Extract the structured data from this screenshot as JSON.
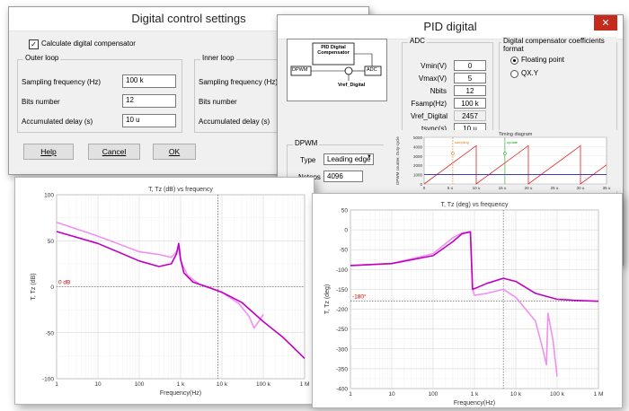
{
  "digital_control": {
    "title": "Digital control settings",
    "calc_checkbox_label": "Calculate digital compensator",
    "outer_loop": {
      "label": "Outer loop",
      "sampling_label": "Sampling frequency (Hz)",
      "sampling_value": "100 k",
      "bits_label": "Bits number",
      "bits_value": "12",
      "delay_label": "Accumulated delay (s)",
      "delay_value": "10 u"
    },
    "inner_loop": {
      "label": "Inner loop",
      "sampling_label": "Sampling frequency (Hz)",
      "bits_label": "Bits number",
      "delay_label": "Accumulated delay (s)"
    },
    "help_label": "Help",
    "cancel_label": "Cancel",
    "ok_label": "OK"
  },
  "pid_digital": {
    "title": "PID digital",
    "block": {
      "comp_label": "PID Digital Compensator",
      "dpwm_label": "DPWM",
      "adc_label": "ADC",
      "vref_label": "Vref_Digital"
    },
    "adc": {
      "label": "ADC",
      "rows": [
        {
          "name": "Vmin(V)",
          "value": "0"
        },
        {
          "name": "Vmax(V)",
          "value": "5"
        },
        {
          "name": "Nbits",
          "value": "12"
        },
        {
          "name": "Fsamp(Hz)",
          "value": "100 k"
        },
        {
          "name": "Vref_Digital",
          "value": "2457"
        },
        {
          "name": "tsync(s)",
          "value": "10 u"
        }
      ]
    },
    "coeff": {
      "label": "Digital compensator coefficients format",
      "opt1": "Floating point",
      "opt2": "QX.Y"
    },
    "dpwm": {
      "label": "DPWM",
      "type_label": "Type",
      "type_value": "Leading edge",
      "nsteps_label": "Nsteps",
      "nsteps_value": "4096"
    },
    "timing": {
      "title": "Timing diagram",
      "y_label": "DPWM counter, Duty-cycle",
      "y_ticks": [
        "5000",
        "4000",
        "3000",
        "2000",
        "1000",
        "0"
      ],
      "x_ticks": [
        "0",
        "5 u",
        "10 u",
        "15 u",
        "20 u",
        "25 u",
        "30 u",
        "35 u"
      ],
      "sampling_label": "sampling",
      "update_label": "update"
    }
  },
  "mag_plot": {
    "title": "T, Tz (dB) vs frequency",
    "ylabel": "T, Tz (dB)",
    "xlabel": "Frequency(Hz)",
    "y_ticks": [
      "100",
      "50",
      "0",
      "-50",
      "-100"
    ],
    "x_ticks": [
      "1",
      "10",
      "100",
      "1 k",
      "10 k",
      "100 k",
      "1 M"
    ],
    "ref_label": "0 dB"
  },
  "phase_plot": {
    "title": "T, Tz (deg) vs frequency",
    "ylabel": "T, Tz (deg)",
    "xlabel": "Frequency(Hz)",
    "y_ticks": [
      "50",
      "0",
      "-50",
      "-100",
      "-150",
      "-200",
      "-250",
      "-300",
      "-350",
      "-400"
    ],
    "x_ticks": [
      "1",
      "10",
      "100",
      "1 k",
      "10 k",
      "100 k",
      "1 M"
    ],
    "ref_label": "-180°"
  },
  "chart_data": [
    {
      "type": "line",
      "title": "T, Tz (dB) vs frequency",
      "xlabel": "Frequency(Hz)",
      "ylabel": "T, Tz (dB)",
      "x_scale": "log",
      "xlim": [
        1,
        1000000
      ],
      "ylim": [
        -100,
        100
      ],
      "grid": true,
      "series": [
        {
          "color": "#c000c0",
          "x": [
            1,
            10,
            100,
            300,
            600,
            800,
            900,
            1000,
            1200,
            2000,
            5000,
            10000,
            30000,
            100000,
            300000,
            1000000
          ],
          "y": [
            60,
            47,
            28,
            22,
            25,
            36,
            47,
            30,
            15,
            5,
            -1,
            -6,
            -17,
            -38,
            -55,
            -78
          ]
        },
        {
          "color": "#f090f0",
          "x": [
            1,
            10,
            100,
            300,
            600,
            800,
            900,
            1000,
            1500,
            3000,
            10000,
            25000,
            45000,
            60000,
            80000,
            100000
          ],
          "y": [
            70,
            55,
            38,
            35,
            32,
            38,
            42,
            28,
            12,
            2,
            -6,
            -18,
            -32,
            -45,
            -37,
            -30
          ]
        }
      ]
    },
    {
      "type": "line",
      "title": "T, Tz (deg) vs frequency",
      "xlabel": "Frequency(Hz)",
      "ylabel": "T, Tz (deg)",
      "x_scale": "log",
      "xlim": [
        1,
        1000000
      ],
      "ylim": [
        -400,
        50
      ],
      "grid": true,
      "series": [
        {
          "color": "#c000c0",
          "x": [
            1,
            10,
            100,
            300,
            500,
            800,
            900,
            1000,
            1200,
            2000,
            5000,
            10000,
            30000,
            100000,
            300000,
            1000000
          ],
          "y": [
            -90,
            -85,
            -65,
            -30,
            -10,
            -5,
            -150,
            -148,
            -145,
            -135,
            -122,
            -130,
            -160,
            -175,
            -178,
            -180
          ],
          "sampled": true
        },
        {
          "color": "#f090f0",
          "x": [
            1,
            10,
            100,
            300,
            500,
            800,
            900,
            1000,
            2000,
            5000,
            10000,
            30000,
            45000,
            55000,
            60000,
            80000,
            100000
          ],
          "y": [
            -90,
            -85,
            -60,
            -20,
            -8,
            -5,
            -150,
            -165,
            -160,
            -150,
            -170,
            -230,
            -300,
            -340,
            -210,
            -280,
            -370
          ]
        }
      ]
    }
  ]
}
